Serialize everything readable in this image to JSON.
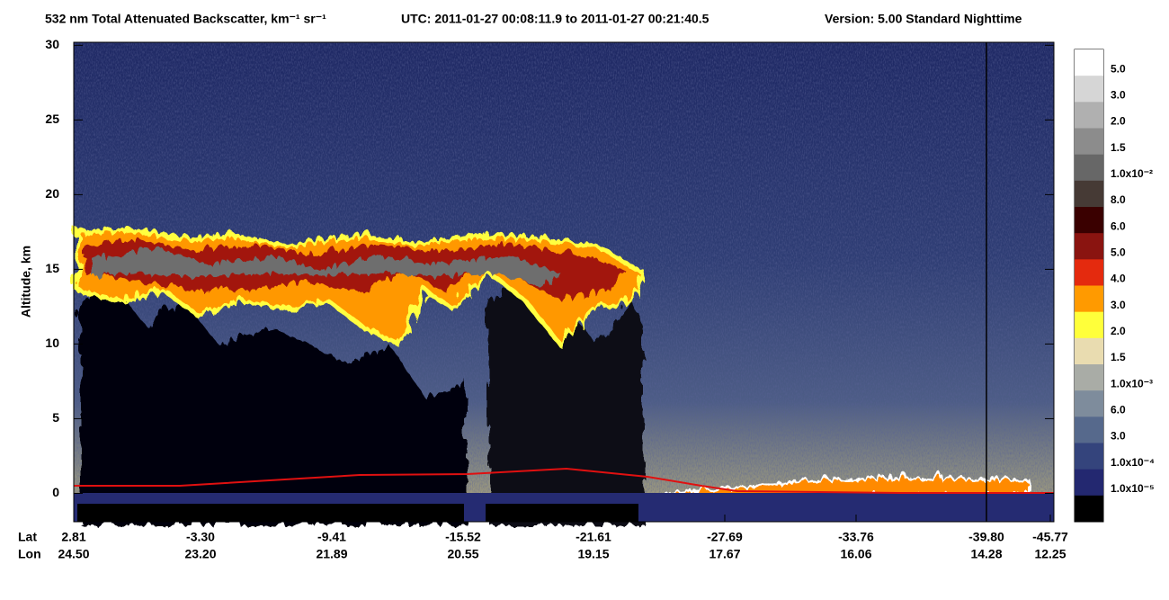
{
  "chart_data": {
    "type": "heatmap",
    "title": "532 nm Total Attenuated Backscatter, km⁻¹ sr⁻¹",
    "utc": "UTC:  2011-01-27 00:08:11.9  to  2011-01-27 00:21:40.5",
    "version": "Version: 5.00  Standard  Nighttime",
    "y_label": "Altitude, km",
    "ylim": [
      -1.9,
      30.2
    ],
    "yticks": [
      0,
      5,
      10,
      15,
      20,
      25,
      30
    ],
    "x_rows": {
      "lat_label": "Lat",
      "lon_label": "Lon",
      "lat": [
        "2.81",
        "-3.30",
        "-9.41",
        "-15.52",
        "-21.61",
        "-27.69",
        "-33.76",
        "-39.80",
        "-45.77"
      ],
      "lon": [
        "24.50",
        "23.20",
        "21.89",
        "20.55",
        "19.15",
        "17.67",
        "16.06",
        "14.28",
        "12.25"
      ]
    },
    "colorbar": {
      "labels": [
        "5.0",
        "3.0",
        "2.0",
        "1.5",
        "1.0x10⁻²",
        "8.0",
        "6.0",
        "5.0",
        "4.0",
        "3.0",
        "2.0",
        "1.5",
        "1.0x10⁻³",
        "6.0",
        "3.0",
        "1.0x10⁻⁴",
        "1.0x10⁻⁵"
      ],
      "colors": [
        "#ffffff",
        "#d6d6d6",
        "#b0b0b0",
        "#8c8c8c",
        "#676767",
        "#463a35",
        "#3a0000",
        "#8a1410",
        "#e42a0e",
        "#ff9a00",
        "#ffff3a",
        "#e9dcb0",
        "#a9aca6",
        "#7e8c9c",
        "#56698c",
        "#34447c",
        "#232870",
        "#000000"
      ]
    }
  }
}
